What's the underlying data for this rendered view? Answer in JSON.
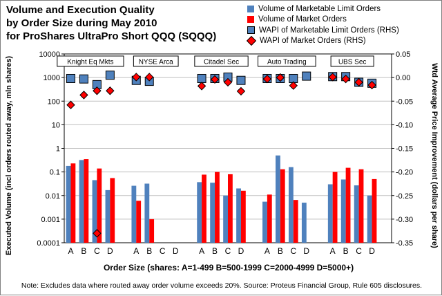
{
  "chart_data": {
    "type": "bar",
    "title_lines": [
      "Volume and Execution Quality",
      "by Order Size during May 2010",
      "for ProShares UltraPro Short QQQ (SQQQ)"
    ],
    "legend": [
      {
        "label": "Volume of Marketable Limit Orders",
        "swatch": "sq-blue"
      },
      {
        "label": "Volume of Market Orders",
        "swatch": "sq-red"
      },
      {
        "label": "WAPI of Marketable Limit Orders (RHS)",
        "swatch": "sq-outlined"
      },
      {
        "label": "WAPI of Market Orders (RHS)",
        "swatch": "diamond"
      }
    ],
    "xlabel": "Order Size (shares:   A=1-499    B=500-1999    C=2000-4999    D=5000+)",
    "ylabel_left": "Executed Volume (incl orders routed away, mln shares)",
    "ylabel_right": "Wtd Average Price Improvement (dollars per share)",
    "footnote": "Note: Excludes data where routed away order volume exceeds 20%. Source: Proteus Financial Group, Rule 605 disclosures.",
    "y_left_scale": "log",
    "y_left_ticks": [
      "0.0001",
      "0.001",
      "0.01",
      "0.1",
      "1",
      "10",
      "100",
      "1000",
      "10000"
    ],
    "y_right_range": [
      -0.35,
      0.05
    ],
    "y_right_ticks": [
      "-0.35",
      "-0.30",
      "-0.25",
      "-0.20",
      "-0.15",
      "-0.10",
      "-0.05",
      "0.00",
      "0.05"
    ],
    "categories": [
      "A",
      "B",
      "C",
      "D"
    ],
    "groups": [
      {
        "name": "Knight Eq Mkts",
        "marketable_limit_volume": [
          0.18,
          0.32,
          0.045,
          0.017
        ],
        "market_volume": [
          0.23,
          0.35,
          0.14,
          0.055
        ],
        "wapi_marketable_limit": [
          -0.002,
          -0.003,
          -0.015,
          0.005
        ],
        "wapi_market": [
          -0.058,
          -0.037,
          -0.028,
          -0.028
        ]
      },
      {
        "name": "NYSE Arca",
        "marketable_limit_volume": [
          0.026,
          0.032,
          null,
          null
        ],
        "market_volume": [
          0.006,
          0.001,
          null,
          null
        ],
        "wapi_marketable_limit": [
          -0.006,
          -0.008,
          null,
          null
        ],
        "wapi_market": [
          0.001,
          0.001,
          null,
          null
        ]
      },
      {
        "name": "Citadel Sec",
        "marketable_limit_volume": [
          0.037,
          0.035,
          0.01,
          0.02
        ],
        "market_volume": [
          0.077,
          0.1,
          0.08,
          0.016
        ],
        "wapi_marketable_limit": [
          -0.002,
          -0.002,
          0.001,
          -0.006
        ],
        "wapi_market": [
          -0.018,
          -0.004,
          -0.01,
          -0.029
        ]
      },
      {
        "name": "Auto Trading",
        "marketable_limit_volume": [
          0.0055,
          0.5,
          0.16,
          0.005
        ],
        "market_volume": [
          0.011,
          0.13,
          0.0065,
          null
        ],
        "wapi_marketable_limit": [
          -0.002,
          -0.002,
          -0.002,
          0.003
        ],
        "wapi_market": [
          -0.003,
          0.0,
          -0.017,
          null
        ]
      },
      {
        "name": "UBS Sec",
        "marketable_limit_volume": [
          0.03,
          0.048,
          0.027,
          0.01
        ],
        "market_volume": [
          0.1,
          0.15,
          0.13,
          0.05
        ],
        "wapi_marketable_limit": [
          0.002,
          0.002,
          -0.01,
          -0.012
        ],
        "wapi_market": [
          0.001,
          -0.003,
          -0.01,
          -0.016
        ]
      }
    ],
    "extra_marker": {
      "group": "Knight Eq Mkts",
      "category": "C",
      "series": "WAPI of Market Orders (RHS)",
      "value": -0.33
    },
    "colors": {
      "marketable_limit": "#4f81bd",
      "market": "#ff0000",
      "outline": "#000000",
      "gridline": "#bfbfbf"
    }
  }
}
